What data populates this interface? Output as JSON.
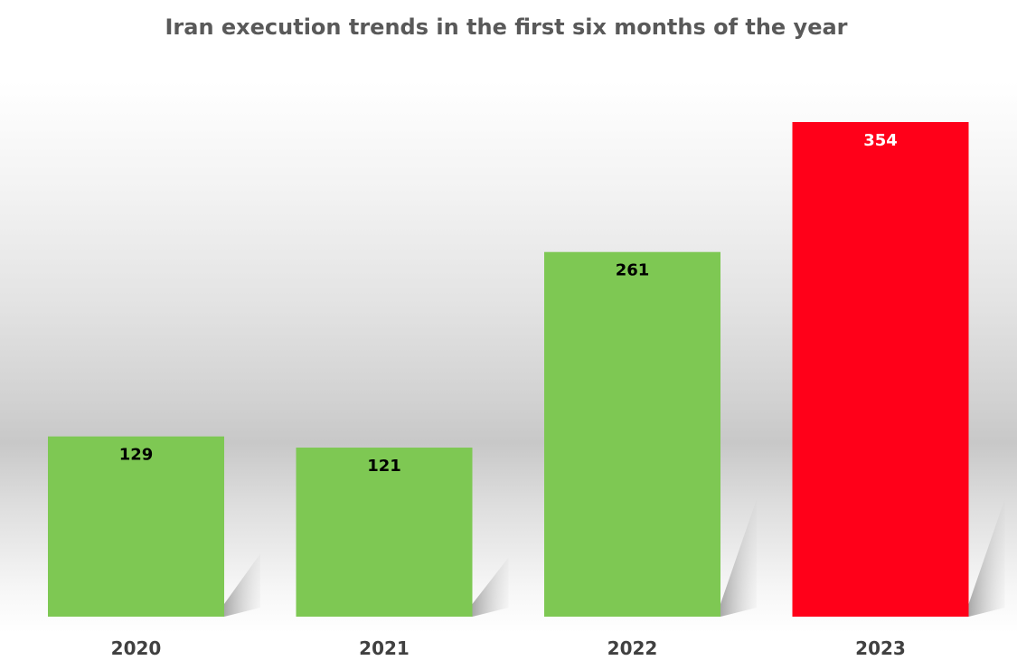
{
  "chart_data": {
    "type": "bar",
    "title": "Iran execution trends in the first six months of the year",
    "xlabel": "",
    "ylabel": "",
    "categories": [
      "2020",
      "2021",
      "2022",
      "2023"
    ],
    "values": [
      129,
      121,
      261,
      354
    ],
    "data_labels": [
      "129",
      "121",
      "261",
      "354"
    ],
    "ylim": [
      0,
      354
    ],
    "grid": false,
    "legend": "none",
    "bar_colors": [
      "#7ec853",
      "#7ec853",
      "#7ec853",
      "#ff0019"
    ],
    "label_colors": [
      "#000000",
      "#000000",
      "#000000",
      "#ffffff"
    ]
  }
}
